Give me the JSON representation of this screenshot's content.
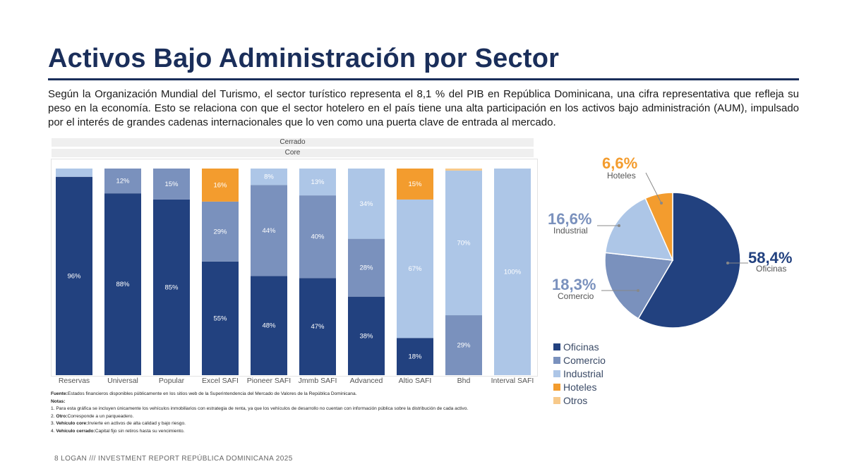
{
  "title": "Activos Bajo Administración por Sector",
  "intro": "Según la Organización Mundial del Turismo, el sector turístico representa el 8,1 % del PIB en República Dominicana, una cifra representativa que refleja su peso en la economía. Esto se relaciona con que el sector hotelero en el país tiene una alta participación en los activos bajo administración (AUM), impulsado por el interés de grandes cadenas internacionales que lo ven como una puerta clave de entrada al mercado.",
  "bar_headers": [
    "Cerrado",
    "Core"
  ],
  "colors": {
    "Oficinas": "#22417f",
    "Comercio": "#7a91bd",
    "Industrial": "#adc6e7",
    "Hoteles": "#f39c2e",
    "Otros": "#f7c98a",
    "title": "#1a2e5a"
  },
  "chart_data": [
    {
      "type": "bar",
      "stacked": true,
      "categories": [
        "Reservas",
        "Universal",
        "Popular",
        "Excel SAFI",
        "Pioneer SAFI",
        "Jmmb SAFI",
        "Advanced",
        "Altio SAFI",
        "Bhd",
        "Interval SAFI"
      ],
      "series": [
        {
          "name": "Oficinas",
          "values": [
            96,
            88,
            85,
            55,
            48,
            47,
            38,
            18,
            0,
            0
          ]
        },
        {
          "name": "Comercio",
          "values": [
            0,
            12,
            15,
            29,
            44,
            40,
            28,
            0,
            29,
            0
          ]
        },
        {
          "name": "Industrial",
          "values": [
            4,
            0,
            0,
            0,
            8,
            13,
            34,
            67,
            70,
            100
          ]
        },
        {
          "name": "Hoteles",
          "values": [
            0,
            0,
            0,
            16,
            0,
            0,
            0,
            15,
            0,
            0
          ]
        },
        {
          "name": "Otros",
          "values": [
            0,
            0,
            0,
            0,
            0,
            0,
            0,
            0,
            1,
            0
          ]
        }
      ],
      "data_labels": [
        [
          "96%",
          null,
          null,
          null,
          null
        ],
        [
          "88%",
          "12%",
          null,
          null,
          null
        ],
        [
          "85%",
          "15%",
          null,
          null,
          null
        ],
        [
          "55%",
          "29%",
          null,
          "16%",
          null
        ],
        [
          "48%",
          "44%",
          "8%",
          null,
          null
        ],
        [
          "47%",
          "40%",
          "13%",
          null,
          null
        ],
        [
          "38%",
          "28%",
          "34%",
          null,
          null
        ],
        [
          "18%",
          null,
          "67%",
          "15%",
          null
        ],
        [
          null,
          "29%",
          "70%",
          null,
          null
        ],
        [
          null,
          null,
          "100%",
          null,
          null
        ]
      ],
      "ylim": [
        0,
        100
      ]
    },
    {
      "type": "pie",
      "slices": [
        {
          "name": "Oficinas",
          "value": 58.4,
          "label": "58,4%"
        },
        {
          "name": "Comercio",
          "value": 18.3,
          "label": "18,3%"
        },
        {
          "name": "Industrial",
          "value": 16.6,
          "label": "16,6%"
        },
        {
          "name": "Hoteles",
          "value": 6.6,
          "label": "6,6%"
        }
      ],
      "legend": [
        "Oficinas",
        "Comercio",
        "Industrial",
        "Hoteles",
        "Otros"
      ]
    }
  ],
  "notes": {
    "source_label": "Fuente:",
    "source_text": "Estados financieros disponibles públicamente en los sitios web de la Superintendencia del Mercado de Valores de la República Dominicana.",
    "notes_label": "Notas:",
    "note1": "1. Para esta gráfica se incluyen únicamente los vehículos inmobiliarios con estrategia de renta, ya que los vehículos de desarrollo no cuentan con información pública sobre la distribución de cada activo.",
    "note2_prefix": "2. ",
    "note2_label": "Otro:",
    "note2_text": "Corresponde a un parqueadero.",
    "note3_prefix": "3. ",
    "note3_label": "Vehículo core:",
    "note3_text": "Invierte en activos de alta calidad y bajo riesgo.",
    "note4_prefix": "4. ",
    "note4_label": "Vehículo cerrado:",
    "note4_text": "Capital fijo sin retiros hasta su vencimiento."
  },
  "footer": "8  LOGAN  ///  INVESTMENT REPORT REPÚBLICA DOMINICANA 2025"
}
